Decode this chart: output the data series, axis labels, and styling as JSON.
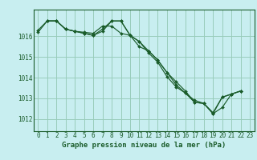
{
  "title": "Graphe pression niveau de la mer (hPa)",
  "bg_color": "#c8eef0",
  "grid_color": "#99ccbb",
  "line_color": "#1a5c2a",
  "marker_color": "#1a5c2a",
  "x_ticks": [
    0,
    1,
    2,
    3,
    4,
    5,
    6,
    7,
    8,
    9,
    10,
    11,
    12,
    13,
    14,
    15,
    16,
    17,
    18,
    19,
    20,
    21,
    22,
    23
  ],
  "y_ticks": [
    1012,
    1013,
    1014,
    1015,
    1016
  ],
  "ylim": [
    1011.4,
    1017.3
  ],
  "xlim": [
    -0.5,
    23.5
  ],
  "series": [
    [
      1016.2,
      1016.75,
      1016.75,
      1016.35,
      1016.25,
      1016.2,
      1016.15,
      1016.5,
      1016.5,
      1016.15,
      1016.05,
      1015.5,
      1015.3,
      1014.85,
      1014.25,
      1013.65,
      1013.25,
      1012.9,
      1012.75,
      1012.25,
      1013.05,
      1013.2,
      1013.35,
      null
    ],
    [
      1016.3,
      1016.75,
      1016.75,
      1016.35,
      1016.25,
      1016.15,
      1016.05,
      1016.25,
      1016.75,
      1016.75,
      1016.05,
      1015.75,
      1015.3,
      1014.85,
      1014.25,
      1013.8,
      1013.35,
      1012.8,
      1012.75,
      1012.25,
      1012.55,
      1013.2,
      1013.35,
      null
    ],
    [
      null,
      1016.75,
      1016.75,
      1016.35,
      1016.25,
      1016.15,
      1016.05,
      1016.35,
      1016.75,
      1016.75,
      1016.05,
      1015.75,
      1015.2,
      1014.75,
      1014.05,
      1013.55,
      1013.25,
      1012.8,
      1012.75,
      1012.3,
      1013.05,
      1013.2,
      1013.35,
      null
    ]
  ],
  "tick_fontsize": 5.5,
  "title_fontsize": 6.5,
  "tick_color": "#1a5c2a",
  "title_color": "#1a5c2a"
}
